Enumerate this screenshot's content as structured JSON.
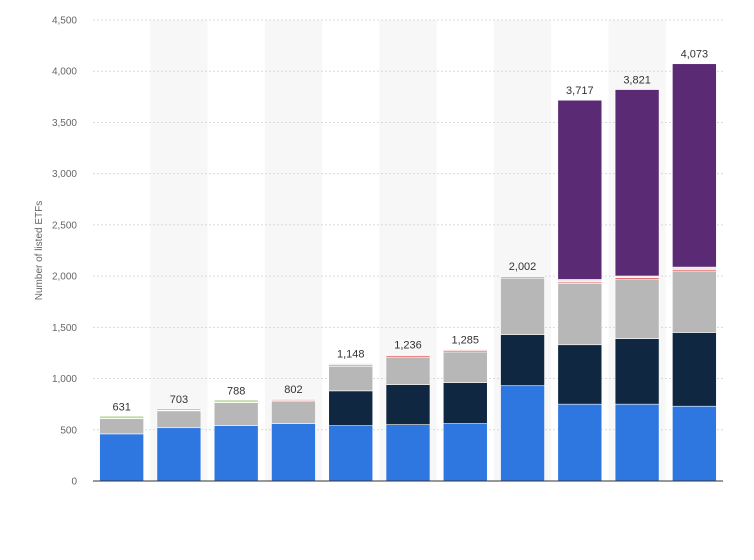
{
  "chart_data": {
    "type": "bar",
    "stacked": true,
    "ylabel": "Number of listed ETFs",
    "xlabel": "",
    "ylim": [
      0,
      4500
    ],
    "yticks": [
      0,
      500,
      1000,
      1500,
      2000,
      2500,
      3000,
      3500,
      4000,
      4500
    ],
    "ytick_labels": [
      "0",
      "500",
      "1,000",
      "1,500",
      "2,000",
      "2,500",
      "3,000",
      "3,500",
      "4,000",
      "4,500"
    ],
    "grid": true,
    "legend": "none",
    "categories": [
      "",
      "",
      "",
      "",
      "",
      "",
      "",
      "",
      "",
      "",
      ""
    ],
    "totals": [
      631,
      703,
      788,
      802,
      1148,
      1236,
      1285,
      2002,
      3717,
      3821,
      4073
    ],
    "total_labels": [
      "631",
      "703",
      "788",
      "802",
      "1,148",
      "1,236",
      "1,285",
      "2,002",
      "3,717",
      "3,821",
      "4,073"
    ],
    "series": [
      {
        "color": "#2f77e0",
        "values": [
          460,
          520,
          540,
          560,
          540,
          550,
          560,
          930,
          750,
          750,
          730
        ]
      },
      {
        "color": "#0f2741",
        "values": [
          0,
          0,
          0,
          0,
          340,
          390,
          400,
          500,
          580,
          640,
          720
        ]
      },
      {
        "color": "#b7b7b7",
        "values": [
          150,
          165,
          225,
          215,
          240,
          270,
          300,
          550,
          600,
          580,
          600
        ]
      },
      {
        "color": "#e85a5a",
        "values": [
          0,
          0,
          0,
          12,
          12,
          14,
          15,
          12,
          12,
          15,
          15
        ]
      },
      {
        "color": "#e9e9e9",
        "values": [
          6,
          6,
          8,
          15,
          16,
          12,
          10,
          10,
          25,
          16,
          23
        ]
      },
      {
        "color": "#8bc34a",
        "values": [
          15,
          12,
          15,
          0,
          0,
          0,
          0,
          0,
          0,
          0,
          0
        ]
      },
      {
        "color": "#5b2a74",
        "values": [
          0,
          0,
          0,
          0,
          0,
          0,
          0,
          0,
          1750,
          1820,
          1985
        ]
      }
    ]
  }
}
